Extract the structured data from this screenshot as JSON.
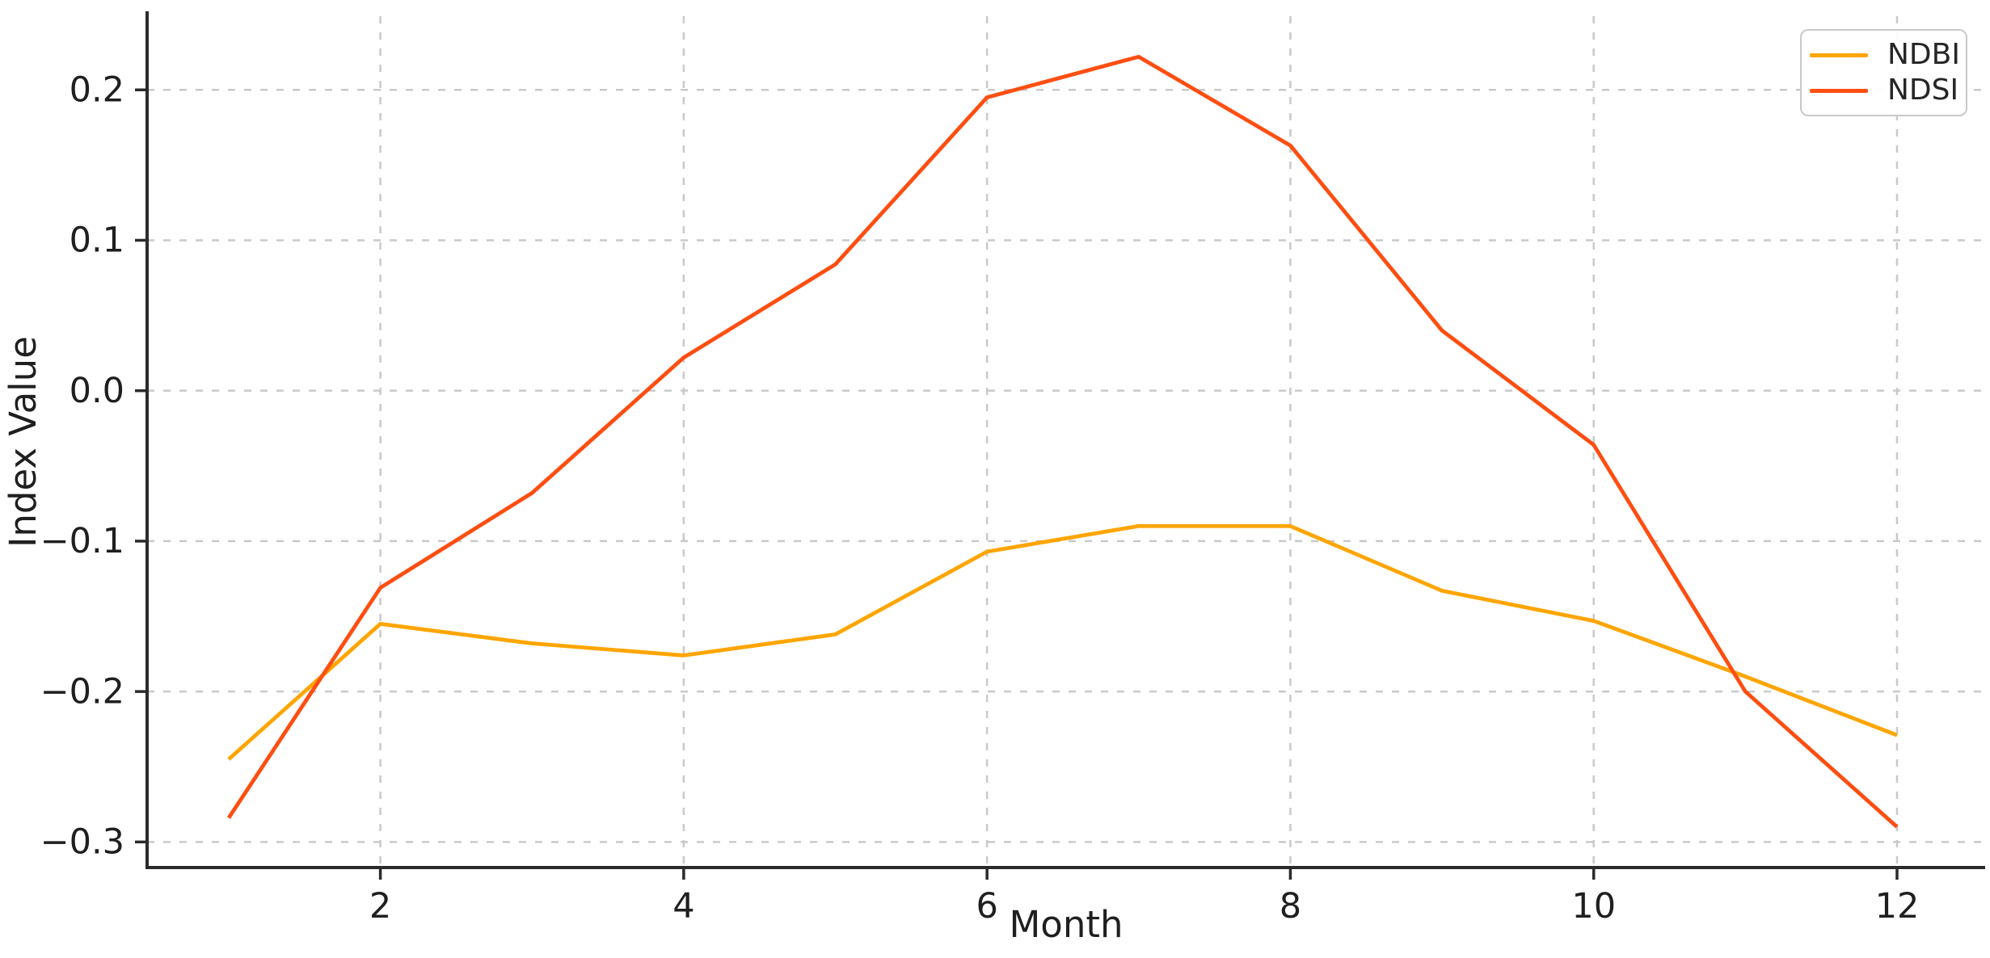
{
  "chart_data": {
    "type": "line",
    "title": "",
    "xlabel": "Month",
    "ylabel": "Index Value",
    "x": [
      1,
      2,
      3,
      4,
      5,
      6,
      7,
      8,
      9,
      10,
      11,
      12
    ],
    "series": [
      {
        "name": "NDBI",
        "color": "#FFA500",
        "values": [
          -0.245,
          -0.155,
          -0.168,
          -0.176,
          -0.162,
          -0.107,
          -0.09,
          -0.09,
          -0.133,
          -0.153,
          -0.19,
          -0.229
        ]
      },
      {
        "name": "NDSI",
        "color": "#FF4E11",
        "values": [
          -0.284,
          -0.131,
          -0.068,
          0.022,
          0.084,
          0.195,
          0.222,
          0.163,
          0.04,
          -0.036,
          -0.2,
          -0.29
        ]
      }
    ],
    "xticks": [
      2,
      4,
      6,
      8,
      10,
      12
    ],
    "xtick_labels": [
      "2",
      "4",
      "6",
      "8",
      "10",
      "12"
    ],
    "yticks": [
      0.2,
      0.1,
      0.0,
      -0.1,
      -0.2,
      -0.3
    ],
    "ytick_labels": [
      "0.2",
      "0.1",
      "0.0",
      "−0.1",
      "−0.2",
      "−0.3"
    ],
    "xlim": [
      0.462,
      12.581
    ],
    "ylim": [
      -0.317,
      0.249
    ],
    "grid": true,
    "grid_style": "dashed",
    "legend_position": "top-right",
    "colors": {
      "grid": "#c9c9c9",
      "spine": "#2b2b2b",
      "tick_text": "#1f1f1f",
      "background": "#ffffff"
    }
  }
}
